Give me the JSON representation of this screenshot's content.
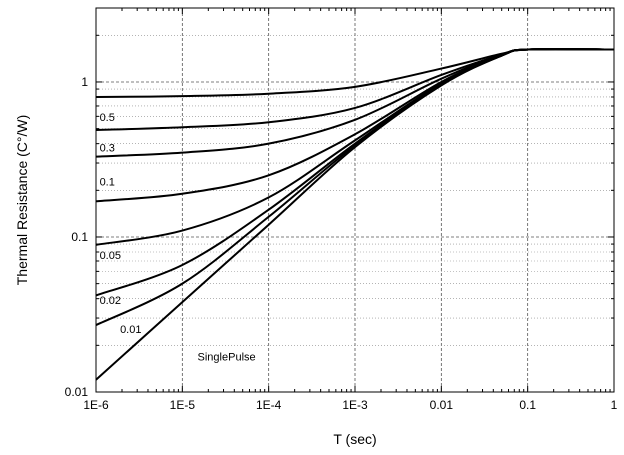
{
  "chart_data": {
    "type": "line",
    "title": "",
    "xlabel": "T (sec)",
    "ylabel": "Thermal Resistance (C°/W)",
    "x_scale": "log",
    "y_scale": "log",
    "xlim": [
      1e-06,
      1
    ],
    "ylim": [
      0.01,
      3
    ],
    "grid": true,
    "legend": "none",
    "x_ticks": [
      {
        "value": 1e-06,
        "label": "1E-6"
      },
      {
        "value": 1e-05,
        "label": "1E-5"
      },
      {
        "value": 0.0001,
        "label": "1E-4"
      },
      {
        "value": 0.001,
        "label": "1E-3"
      },
      {
        "value": 0.01,
        "label": "0.01"
      },
      {
        "value": 0.1,
        "label": "0.1"
      },
      {
        "value": 1,
        "label": "1"
      }
    ],
    "y_ticks": [
      {
        "value": 0.01,
        "label": "0.01"
      },
      {
        "value": 0.1,
        "label": "0.1"
      },
      {
        "value": 1,
        "label": "1"
      }
    ],
    "x": [
      1e-06,
      1e-05,
      0.0001,
      0.001,
      0.01,
      0.05,
      0.1,
      1
    ],
    "series": [
      {
        "name": "0.5",
        "label_at": [
          1.1e-06,
          0.56
        ],
        "values": [
          0.8,
          0.81,
          0.84,
          0.93,
          1.22,
          1.52,
          1.62,
          1.62
        ]
      },
      {
        "name": "0.3",
        "label_at": [
          1.1e-06,
          0.355
        ],
        "values": [
          0.49,
          0.51,
          0.55,
          0.68,
          1.11,
          1.5,
          1.62,
          1.62
        ]
      },
      {
        "name": "0.1",
        "label_at": [
          1.1e-06,
          0.215
        ],
        "values": [
          0.33,
          0.35,
          0.4,
          0.57,
          1.05,
          1.5,
          1.62,
          1.62
        ]
      },
      {
        "name": "",
        "values": [
          0.17,
          0.19,
          0.25,
          0.46,
          1.0,
          1.49,
          1.62,
          1.62
        ]
      },
      {
        "name": "0.05",
        "label_at": [
          1.1e-06,
          0.072
        ],
        "values": [
          0.089,
          0.11,
          0.18,
          0.42,
          0.98,
          1.48,
          1.62,
          1.62
        ]
      },
      {
        "name": "0.02",
        "label_at": [
          1.1e-06,
          0.037
        ],
        "values": [
          0.042,
          0.066,
          0.15,
          0.4,
          0.97,
          1.48,
          1.62,
          1.62
        ]
      },
      {
        "name": "0.01",
        "label_at": [
          1.9e-06,
          0.024
        ],
        "values": [
          0.027,
          0.05,
          0.135,
          0.39,
          0.96,
          1.48,
          1.62,
          1.62
        ]
      },
      {
        "name": "SinglePulse",
        "label_at": [
          1.5e-05,
          0.016
        ],
        "values": [
          0.012,
          0.038,
          0.12,
          0.38,
          0.95,
          1.48,
          1.62,
          1.62
        ]
      }
    ]
  }
}
